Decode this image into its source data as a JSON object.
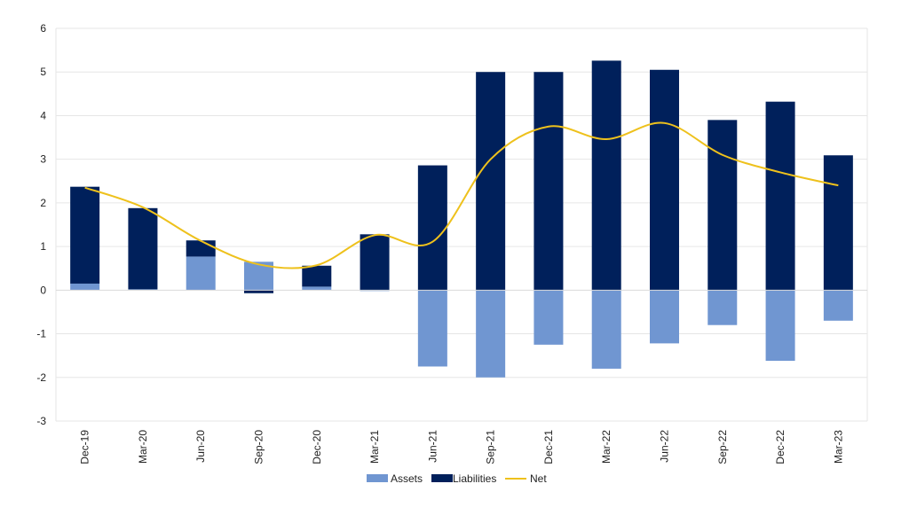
{
  "chart_data": {
    "type": "bar",
    "stacked": true,
    "categories": [
      "Dec-19",
      "Mar-20",
      "Jun-20",
      "Sep-20",
      "Dec-20",
      "Mar-21",
      "Jun-21",
      "Sep-21",
      "Dec-21",
      "Mar-22",
      "Jun-22",
      "Sep-22",
      "Dec-22",
      "Mar-23"
    ],
    "series": [
      {
        "name": "Assets",
        "kind": "bar",
        "color": "#7096D1",
        "values": [
          0.15,
          0.02,
          0.77,
          0.65,
          0.08,
          -0.02,
          -1.75,
          -2.0,
          -1.25,
          -1.8,
          -1.22,
          -0.8,
          -1.62,
          -0.7
        ]
      },
      {
        "name": "Liabilities",
        "kind": "bar",
        "color": "#00205B",
        "values": [
          2.22,
          1.86,
          0.37,
          -0.07,
          0.48,
          1.28,
          2.86,
          5.0,
          5.0,
          5.26,
          5.05,
          3.9,
          4.32,
          3.09
        ]
      },
      {
        "name": "Net",
        "kind": "line",
        "color": "#EEC11C",
        "values": [
          2.35,
          1.9,
          1.13,
          0.59,
          0.57,
          1.26,
          1.11,
          3.0,
          3.75,
          3.46,
          3.83,
          3.1,
          2.7,
          2.4
        ]
      }
    ],
    "xlabel": "",
    "ylabel": "",
    "ylim": [
      -3,
      6
    ],
    "yticks": [
      -3,
      -2,
      -1,
      0,
      1,
      2,
      3,
      4,
      5,
      6
    ],
    "grid": true,
    "legend_position": "bottom-center"
  }
}
